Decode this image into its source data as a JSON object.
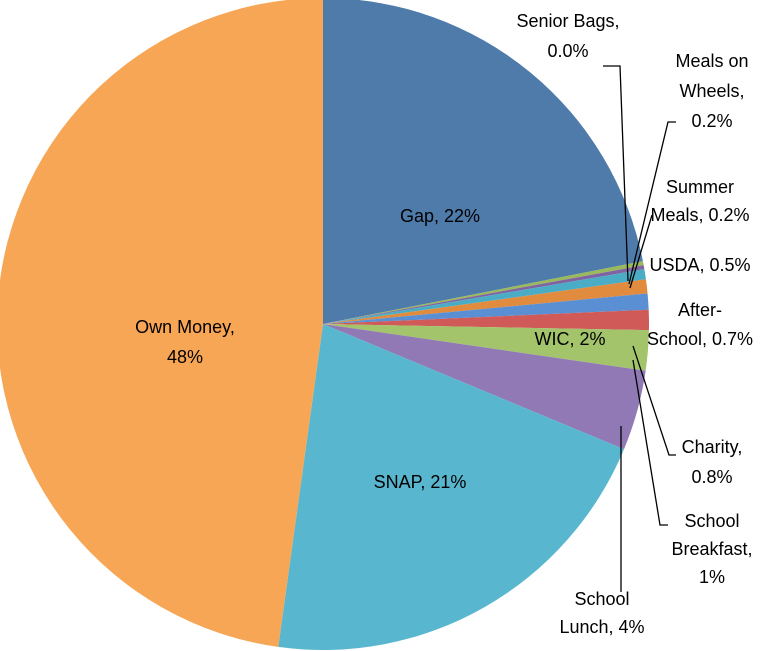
{
  "chart_data": {
    "type": "pie",
    "values": [
      22,
      0.0,
      0.2,
      0.2,
      0.5,
      0.7,
      0.8,
      1,
      2,
      4,
      21,
      48
    ],
    "labels": [
      [
        "Gap, 22%"
      ],
      [
        "Senior Bags,",
        "0.0%"
      ],
      [
        "Meals on",
        "Wheels,",
        "0.2%"
      ],
      [
        "Summer",
        "Meals, 0.2%"
      ],
      [
        "USDA, 0.5%"
      ],
      [
        "After-",
        "School, 0.7%"
      ],
      [
        "Charity,",
        "0.8%"
      ],
      [
        "School",
        "Breakfast,",
        "1%"
      ],
      [
        "WIC, 2%"
      ],
      [
        "School",
        "Lunch, 4%"
      ],
      [
        "SNAP, 21%"
      ],
      [
        "Own Money,",
        "48%"
      ]
    ],
    "colors": [
      "#4f7bab",
      "#9bbb59",
      "#9ab95a",
      "#8064a2",
      "#4bacc6",
      "#e08b3e",
      "#5b8fd4",
      "#cf5a57",
      "#a3c46a",
      "#9179b6",
      "#58b7cf",
      "#f6a655"
    ]
  }
}
